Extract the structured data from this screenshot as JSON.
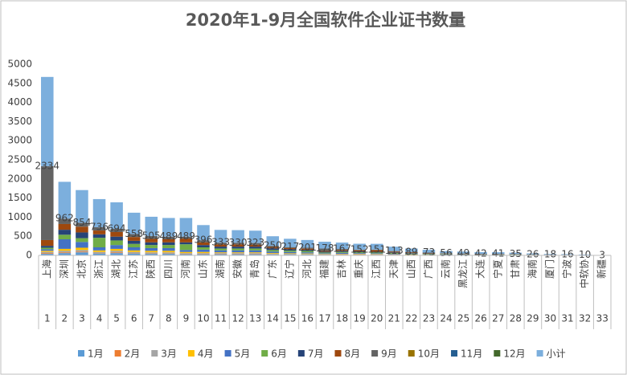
{
  "chart_data": {
    "type": "bar",
    "stacked": true,
    "title": "2020年1-9月全国软件企业证书数量",
    "categories": [
      "上海",
      "深圳",
      "北京",
      "浙江",
      "湖北",
      "江苏",
      "陕西",
      "四川",
      "河南",
      "山东",
      "湖南",
      "安徽",
      "青岛",
      "广东",
      "辽宁",
      "河北",
      "福建",
      "吉林",
      "重庆",
      "江西",
      "天津",
      "山西",
      "广西",
      "云南",
      "黑龙江",
      "大连",
      "宁夏",
      "甘肃",
      "海南",
      "厦门",
      "宁波",
      "中软协",
      "新疆"
    ],
    "ranks": [
      1,
      2,
      3,
      4,
      5,
      6,
      7,
      8,
      9,
      10,
      11,
      12,
      13,
      14,
      15,
      16,
      17,
      18,
      19,
      20,
      21,
      22,
      23,
      24,
      25,
      26,
      27,
      28,
      29,
      30,
      31,
      32,
      33
    ],
    "ylim": [
      0,
      5000
    ],
    "yticks": [
      0,
      500,
      1000,
      1500,
      2000,
      2500,
      3000,
      3500,
      4000,
      4500,
      5000
    ],
    "grid": false,
    "legend": "bottom",
    "labeled_series": 12,
    "series": [
      {
        "name": "1月",
        "color": "#5b9bd5",
        "values": [
          40,
          60,
          80,
          50,
          60,
          50,
          40,
          40,
          30,
          30,
          30,
          30,
          30,
          20,
          20,
          20,
          10,
          15,
          15,
          10,
          10,
          8,
          6,
          5,
          4,
          4,
          3,
          3,
          2,
          2,
          1,
          1,
          0
        ]
      },
      {
        "name": "2月",
        "color": "#ed7d31",
        "values": [
          20,
          20,
          20,
          10,
          20,
          10,
          10,
          10,
          10,
          10,
          10,
          10,
          10,
          5,
          5,
          5,
          5,
          5,
          5,
          5,
          3,
          2,
          2,
          1,
          1,
          1,
          1,
          1,
          1,
          0,
          0,
          0,
          0
        ]
      },
      {
        "name": "3月",
        "color": "#a5a5a5",
        "values": [
          30,
          40,
          40,
          30,
          40,
          30,
          30,
          30,
          20,
          20,
          20,
          20,
          20,
          15,
          15,
          10,
          10,
          10,
          10,
          10,
          7,
          5,
          5,
          4,
          3,
          3,
          3,
          2,
          2,
          1,
          1,
          1,
          0
        ]
      },
      {
        "name": "4月",
        "color": "#ffc000",
        "values": [
          30,
          50,
          60,
          40,
          50,
          40,
          40,
          40,
          30,
          30,
          20,
          20,
          20,
          20,
          15,
          15,
          10,
          10,
          10,
          10,
          8,
          6,
          5,
          4,
          4,
          3,
          3,
          3,
          2,
          1,
          1,
          1,
          0
        ]
      },
      {
        "name": "5月",
        "color": "#4472c4",
        "values": [
          40,
          250,
          150,
          80,
          100,
          80,
          70,
          70,
          50,
          60,
          50,
          50,
          50,
          40,
          35,
          30,
          20,
          25,
          20,
          20,
          15,
          12,
          10,
          8,
          7,
          6,
          6,
          5,
          4,
          3,
          3,
          1,
          1
        ]
      },
      {
        "name": "6月",
        "color": "#70ad47",
        "values": [
          40,
          120,
          100,
          250,
          120,
          90,
          80,
          80,
          150,
          60,
          50,
          50,
          50,
          40,
          35,
          35,
          20,
          25,
          25,
          20,
          20,
          15,
          12,
          9,
          8,
          7,
          7,
          6,
          4,
          3,
          3,
          2,
          1
        ]
      },
      {
        "name": "7月",
        "color": "#264478",
        "values": [
          50,
          130,
          150,
          90,
          100,
          80,
          70,
          70,
          50,
          60,
          50,
          50,
          50,
          40,
          35,
          30,
          20,
          25,
          20,
          20,
          15,
          12,
          10,
          8,
          7,
          6,
          6,
          5,
          4,
          3,
          3,
          1,
          0
        ]
      },
      {
        "name": "8月",
        "color": "#9e480e",
        "values": [
          150,
          150,
          150,
          100,
          120,
          100,
          90,
          80,
          100,
          70,
          60,
          60,
          50,
          40,
          30,
          30,
          20,
          25,
          25,
          40,
          20,
          15,
          12,
          9,
          8,
          6,
          6,
          5,
          4,
          3,
          2,
          2,
          1
        ]
      },
      {
        "name": "9月",
        "color": "#636363",
        "values": [
          1934,
          142,
          104,
          86,
          84,
          78,
          75,
          69,
          49,
          56,
          43,
          40,
          43,
          30,
          27,
          26,
          63,
          27,
          22,
          16,
          15,
          14,
          11,
          8,
          7,
          6,
          6,
          5,
          3,
          2,
          2,
          1,
          0
        ]
      },
      {
        "name": "10月",
        "color": "#997300",
        "values": [
          0,
          0,
          0,
          0,
          0,
          0,
          0,
          0,
          0,
          0,
          0,
          0,
          0,
          0,
          0,
          0,
          0,
          0,
          0,
          0,
          0,
          0,
          0,
          0,
          0,
          0,
          0,
          0,
          0,
          0,
          0,
          0,
          0
        ]
      },
      {
        "name": "11月",
        "color": "#255e91",
        "values": [
          0,
          0,
          0,
          0,
          0,
          0,
          0,
          0,
          0,
          0,
          0,
          0,
          0,
          0,
          0,
          0,
          0,
          0,
          0,
          0,
          0,
          0,
          0,
          0,
          0,
          0,
          0,
          0,
          0,
          0,
          0,
          0,
          0
        ]
      },
      {
        "name": "12月",
        "color": "#43682b",
        "values": [
          0,
          0,
          0,
          0,
          0,
          0,
          0,
          0,
          0,
          0,
          0,
          0,
          0,
          0,
          0,
          0,
          0,
          0,
          0,
          0,
          0,
          0,
          0,
          0,
          0,
          0,
          0,
          0,
          0,
          0,
          0,
          0,
          0
        ]
      },
      {
        "name": "小计",
        "color": "#7cafdd",
        "values": [
          2334,
          962,
          854,
          736,
          694,
          558,
          505,
          489,
          489,
          396,
          333,
          330,
          323,
          250,
          217,
          201,
          178,
          167,
          152,
          151,
          113,
          89,
          73,
          56,
          49,
          42,
          41,
          35,
          26,
          18,
          16,
          10,
          3
        ]
      }
    ]
  }
}
